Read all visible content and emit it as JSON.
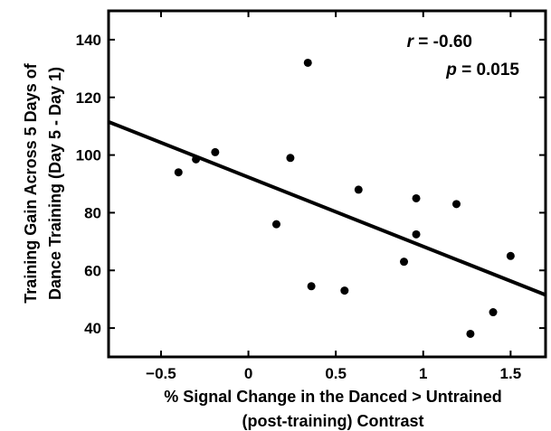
{
  "chart_data": {
    "type": "scatter",
    "xlabel_lines": [
      "% Signal Change in the Danced > Untrained",
      "(post-training) Contrast"
    ],
    "ylabel_lines": [
      "Training Gain Across 5 Days of",
      "Dance Training (Day 5 - Day 1)"
    ],
    "xlim": [
      -0.8,
      1.7
    ],
    "ylim": [
      30,
      150
    ],
    "xticks": [
      -0.5,
      0,
      0.5,
      1,
      1.5
    ],
    "xtick_labels": [
      "−0.5",
      "0",
      "0.5",
      "1",
      "1.5"
    ],
    "yticks": [
      40,
      60,
      80,
      100,
      120,
      140
    ],
    "ytick_labels": [
      "40",
      "60",
      "80",
      "100",
      "120",
      "140"
    ],
    "grid": false,
    "points": [
      {
        "x": -0.4,
        "y": 94
      },
      {
        "x": -0.3,
        "y": 98.5
      },
      {
        "x": -0.19,
        "y": 101
      },
      {
        "x": 0.16,
        "y": 76
      },
      {
        "x": 0.24,
        "y": 99
      },
      {
        "x": 0.34,
        "y": 132
      },
      {
        "x": 0.36,
        "y": 54.5
      },
      {
        "x": 0.55,
        "y": 53
      },
      {
        "x": 0.63,
        "y": 88
      },
      {
        "x": 0.89,
        "y": 63
      },
      {
        "x": 0.96,
        "y": 85
      },
      {
        "x": 0.96,
        "y": 72.5
      },
      {
        "x": 1.19,
        "y": 83
      },
      {
        "x": 1.27,
        "y": 38
      },
      {
        "x": 1.4,
        "y": 45.5
      },
      {
        "x": 1.5,
        "y": 65
      }
    ],
    "fit_line": {
      "x": [
        -0.8,
        1.7
      ],
      "y": [
        111.5,
        51.5
      ]
    },
    "annotation": {
      "r_symbol": "r",
      "r_value": " = -0.60",
      "p_symbol": "p",
      "p_value": " = 0.015"
    }
  }
}
